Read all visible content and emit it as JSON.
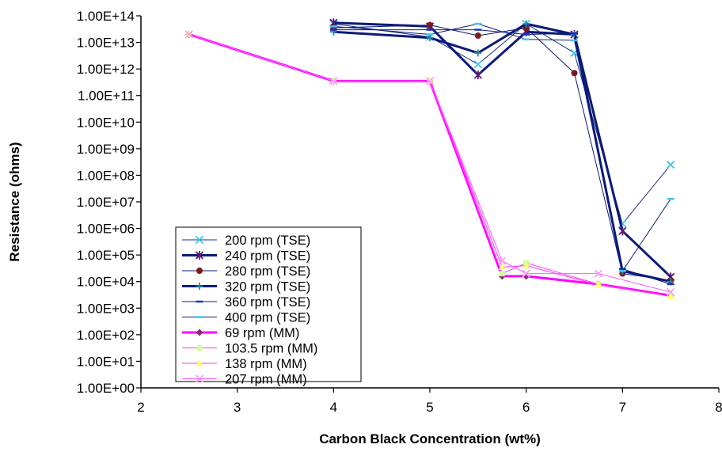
{
  "chart_data": {
    "type": "line",
    "title": "",
    "xlabel": "Carbon Black Concentration (wt%)",
    "ylabel": "Resistance (ohms)",
    "xlim": [
      2,
      8
    ],
    "ylim": [
      1,
      100000000000000.0
    ],
    "yscale": "log",
    "x_ticks": [
      "2",
      "3",
      "4",
      "5",
      "6",
      "7",
      "8"
    ],
    "y_ticks": [
      "1.00E+00",
      "1.00E+01",
      "1.00E+02",
      "1.00E+03",
      "1.00E+04",
      "1.00E+05",
      "1.00E+06",
      "1.00E+07",
      "1.00E+08",
      "1.00E+09",
      "1.00E+10",
      "1.00E+11",
      "1.00E+12",
      "1.00E+13",
      "1.00E+14"
    ],
    "grid": false,
    "legend_position": "lower-left",
    "series": [
      {
        "name": "200 rpm (TSE)",
        "color": "#1c2e8c",
        "width": 1,
        "marker": "x-cross",
        "marker_color": "#33ccee",
        "x": [
          4,
          5,
          5.5,
          6,
          6.5,
          7,
          7.5
        ],
        "y": [
          50000000000000.0,
          16000000000000.0,
          1500000000000.0,
          50000000000000.0,
          4000000000000.0,
          1500000.0,
          250000000.0
        ]
      },
      {
        "name": "240 rpm (TSE)",
        "color": "#0b1a78",
        "width": 3,
        "marker": "asterisk",
        "marker_color": "#551a73",
        "x": [
          4,
          5,
          5.5,
          6,
          6.5,
          7,
          7.5
        ],
        "y": [
          55000000000000.0,
          40000000000000.0,
          600000000000.0,
          25000000000000.0,
          20000000000000.0,
          800000.0,
          15000.0
        ]
      },
      {
        "name": "280 rpm (TSE)",
        "color": "#0b1a78",
        "width": 1,
        "marker": "circle",
        "marker_color": "#7b1a1a",
        "x": [
          4,
          5,
          5.5,
          6,
          6.5,
          7,
          7.5
        ],
        "y": [
          35000000000000.0,
          45000000000000.0,
          18000000000000.0,
          35000000000000.0,
          700000000000.0,
          20000.0,
          11000.0
        ]
      },
      {
        "name": "320 rpm (TSE)",
        "color": "#0b1a78",
        "width": 3,
        "marker": "plus",
        "marker_color": "#2a8aa0",
        "x": [
          4,
          5,
          5.5,
          6,
          6.5,
          7,
          7.5
        ],
        "y": [
          25000000000000.0,
          15000000000000.0,
          4000000000000.0,
          50000000000000.0,
          20000000000000.0,
          25000.0,
          10000.0
        ]
      },
      {
        "name": "360 rpm (TSE)",
        "color": "#0b1a78",
        "width": 1,
        "marker": "dash",
        "marker_color": "#1a2ecc",
        "x": [
          4,
          5,
          5.5,
          6,
          6.5,
          7,
          7.5
        ],
        "y": [
          30000000000000.0,
          30000000000000.0,
          30000000000000.0,
          20000000000000.0,
          22000000000000.0,
          30000.0,
          8000.0
        ]
      },
      {
        "name": "400 rpm (TSE)",
        "color": "#0b1a78",
        "width": 1,
        "marker": "dash",
        "marker_color": "#33ccee",
        "x": [
          4,
          5,
          5.5,
          6,
          6.5,
          7,
          7.5
        ],
        "y": [
          40000000000000.0,
          20000000000000.0,
          50000000000000.0,
          13000000000000.0,
          12000000000000.0,
          25000.0,
          13000000.0
        ]
      },
      {
        "name": "69 rpm (MM)",
        "color": "#ff00ff",
        "width": 3,
        "marker": "diamond",
        "marker_color": "#8b2a6a",
        "x": [
          2.5,
          4,
          5,
          5.75,
          6,
          6.75,
          7.5
        ],
        "y": [
          20000000000000.0,
          350000000000.0,
          350000000000.0,
          16000.0,
          16000.0,
          8000.0,
          3000.0
        ]
      },
      {
        "name": "103.5 rpm (MM)",
        "color": "#ff33ff",
        "width": 1,
        "marker": "square",
        "marker_color": "#ccff99",
        "x": [
          2.5,
          4,
          5,
          5.75,
          6,
          6.75,
          7.5
        ],
        "y": [
          20000000000000.0,
          350000000000.0,
          350000000000.0,
          20000.0,
          50000.0,
          8000.0,
          2800.0
        ]
      },
      {
        "name": "138 rpm (MM)",
        "color": "#ff33ff",
        "width": 1,
        "marker": "triangle",
        "marker_color": "#ffff66",
        "x": [
          2.5,
          4,
          5,
          5.75,
          6,
          6.75,
          7.5
        ],
        "y": [
          20000000000000.0,
          350000000000.0,
          350000000000.0,
          35000.0,
          40000.0,
          7500.0,
          2800.0
        ]
      },
      {
        "name": "207 rpm (MM)",
        "color": "#ff55ff",
        "width": 1,
        "marker": "x-cross",
        "marker_color": "#ff99ff",
        "x": [
          2.5,
          4,
          5,
          5.75,
          6,
          6.75,
          7.5
        ],
        "y": [
          20000000000000.0,
          350000000000.0,
          350000000000.0,
          60000.0,
          20000.0,
          20000.0,
          4000.0
        ]
      }
    ]
  }
}
